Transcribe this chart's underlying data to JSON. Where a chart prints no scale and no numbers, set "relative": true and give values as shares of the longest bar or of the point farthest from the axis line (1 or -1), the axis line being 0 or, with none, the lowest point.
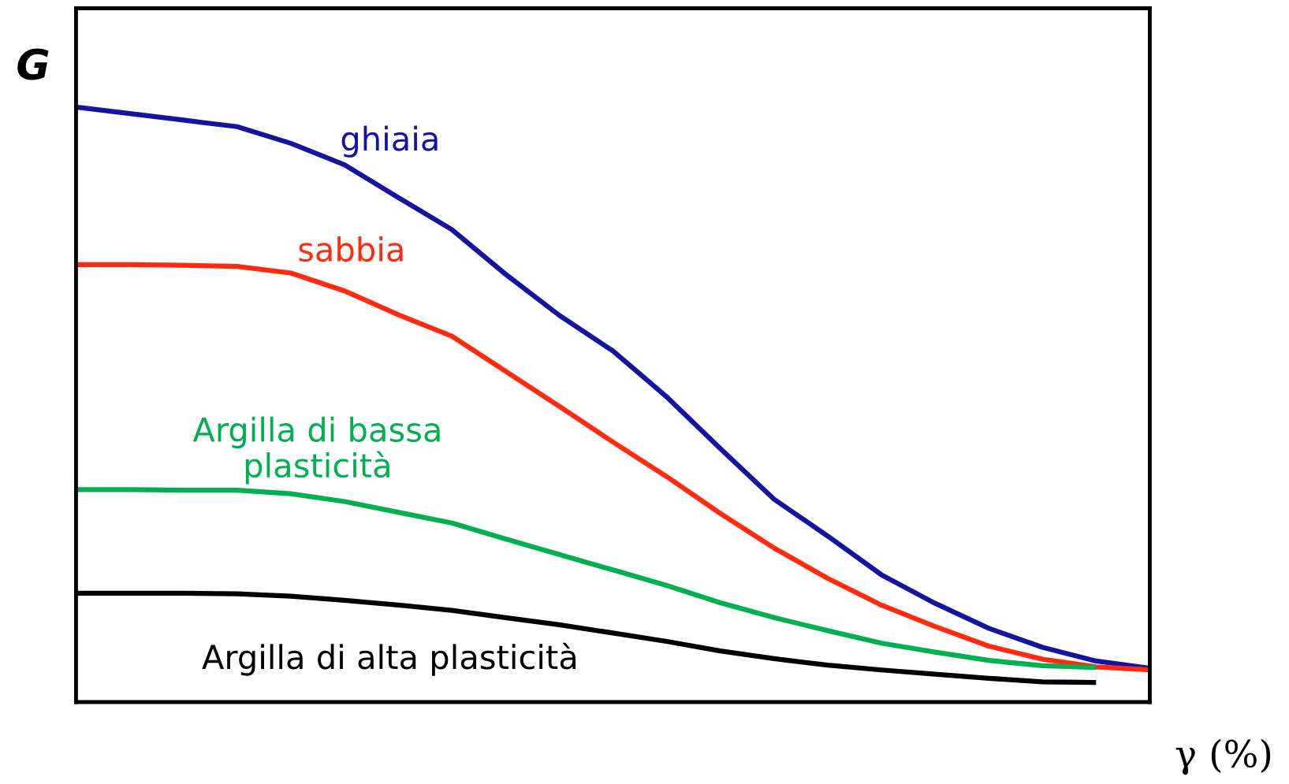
{
  "chart_data": {
    "type": "line",
    "relative": true,
    "xlabel": "γ (%)",
    "ylabel": "G",
    "legend": false,
    "marker": "none",
    "line_style": "solid",
    "categories": [
      null,
      null,
      null,
      null,
      null,
      null,
      null,
      null,
      null,
      null,
      null,
      null,
      null,
      null,
      null,
      null,
      null,
      null,
      null,
      null,
      null
    ],
    "series": [
      {
        "name": "ghiaia",
        "color": "#1414a0",
        "values": [
          1,
          0.989,
          0.978,
          0.967,
          0.939,
          0.903,
          0.848,
          0.794,
          0.719,
          0.65,
          0.59,
          0.513,
          0.426,
          0.341,
          0.279,
          0.214,
          0.166,
          0.124,
          0.092,
          0.069,
          0.057
        ]
      },
      {
        "name": "sabbia",
        "color": "#ff2a10",
        "values": [
          0.735,
          0.735,
          0.734,
          0.732,
          0.721,
          0.691,
          0.651,
          0.615,
          0.556,
          0.497,
          0.437,
          0.379,
          0.317,
          0.259,
          0.208,
          0.163,
          0.127,
          0.094,
          0.072,
          0.059,
          0.054
        ]
      },
      {
        "name": "Argilla di bassa\nplasticità",
        "color": "#00b050",
        "values": [
          0.357,
          0.357,
          0.356,
          0.356,
          0.35,
          0.337,
          0.319,
          0.301,
          0.274,
          0.248,
          0.222,
          0.196,
          0.167,
          0.142,
          0.12,
          0.099,
          0.084,
          0.07,
          0.061,
          0.058,
          null
        ]
      },
      {
        "name": "Argilla di alta plasticità",
        "color": "#000000",
        "values": [
          0.183,
          0.183,
          0.183,
          0.182,
          0.178,
          0.171,
          0.163,
          0.154,
          0.142,
          0.13,
          0.116,
          0.102,
          0.086,
          0.073,
          0.062,
          0.054,
          0.047,
          0.04,
          0.034,
          0.033,
          null
        ]
      }
    ]
  }
}
